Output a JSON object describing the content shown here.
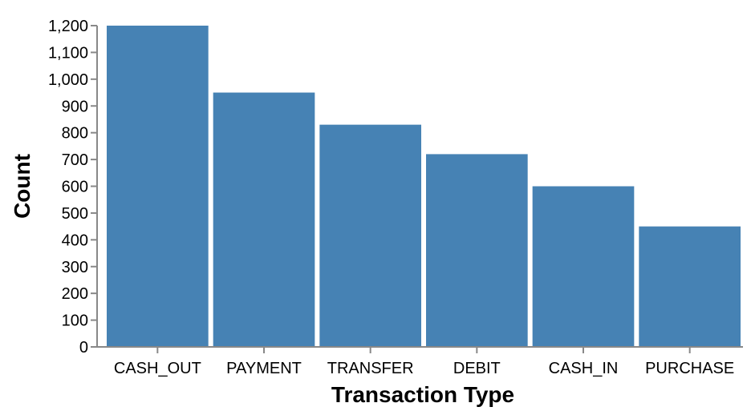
{
  "chart_data": {
    "type": "bar",
    "categories": [
      "CASH_OUT",
      "PAYMENT",
      "TRANSFER",
      "DEBIT",
      "CASH_IN",
      "PURCHASE"
    ],
    "values": [
      1200,
      950,
      830,
      720,
      600,
      450
    ],
    "xlabel": "Transaction Type",
    "ylabel": "Count",
    "ylim": [
      0,
      1200
    ],
    "yticks": [
      "0",
      "100",
      "200",
      "300",
      "400",
      "500",
      "600",
      "700",
      "800",
      "900",
      "1,000",
      "1,100",
      "1,200"
    ],
    "ytick_values": [
      0,
      100,
      200,
      300,
      400,
      500,
      600,
      700,
      800,
      900,
      1000,
      1100,
      1200
    ],
    "grid": false,
    "legend": "none",
    "bar_color": "#4682b4",
    "axis_color": "#888888"
  }
}
